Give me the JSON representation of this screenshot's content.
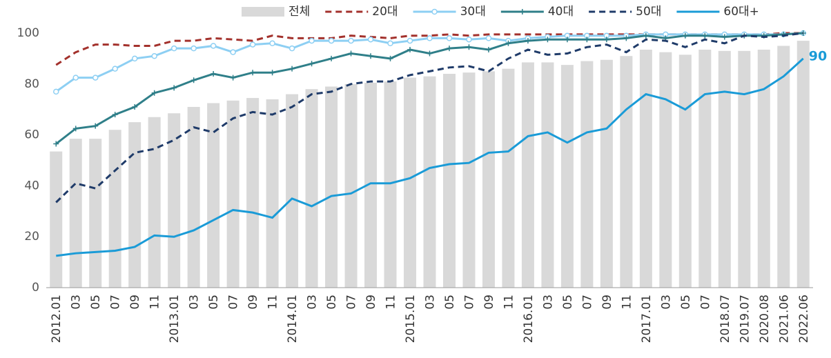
{
  "chart_data": {
    "type": "combo",
    "categories": [
      "2012.01",
      "03",
      "05",
      "07",
      "09",
      "11",
      "2013.01",
      "03",
      "05",
      "07",
      "09",
      "11",
      "2014.01",
      "03",
      "05",
      "07",
      "09",
      "11",
      "2015.01",
      "03",
      "05",
      "07",
      "09",
      "11",
      "2016.01",
      "03",
      "05",
      "07",
      "09",
      "11",
      "2017.01",
      "03",
      "05",
      "07",
      "2018.07",
      "2019.07",
      "2020.08",
      "2021.06",
      "2022.06"
    ],
    "series": [
      {
        "name": "전체",
        "kind": "bar",
        "color": "#d9d9d9",
        "values": [
          53.5,
          58.5,
          58.5,
          62,
          65,
          67,
          68.5,
          71,
          72.5,
          73.5,
          74.5,
          74,
          76,
          78,
          79,
          80,
          80.5,
          81,
          82.5,
          83,
          84,
          84.5,
          85,
          86,
          88.5,
          88.5,
          87.5,
          89,
          89.5,
          91,
          93.5,
          92.5,
          91.5,
          93.5,
          93,
          93,
          93.5,
          95,
          97
        ]
      },
      {
        "name": "20대",
        "kind": "line",
        "dash": true,
        "color": "#a3312c",
        "values": [
          87.5,
          92.5,
          95.5,
          95.5,
          95,
          95,
          97,
          97,
          98,
          97.5,
          97,
          99,
          98,
          98,
          98,
          99,
          98.5,
          98,
          99,
          99,
          99.5,
          99,
          99.5,
          99.5,
          99.5,
          99.5,
          99.5,
          99.5,
          99.5,
          99.5,
          99.5,
          99.5,
          99.5,
          99.5,
          99.5,
          99.5,
          99.5,
          100,
          100
        ]
      },
      {
        "name": "30대",
        "kind": "line",
        "marker": "circle",
        "color": "#8dcff3",
        "values": [
          77,
          82.5,
          82.5,
          86,
          90,
          91,
          94,
          94,
          95,
          92.5,
          95.5,
          96,
          94,
          97,
          97,
          97,
          97.5,
          96,
          97,
          98,
          98,
          97.5,
          98,
          97,
          98,
          98.5,
          99,
          99,
          99,
          99,
          99.5,
          99.5,
          99.5,
          99.5,
          99.5,
          99.5,
          99.5,
          99.5,
          100
        ]
      },
      {
        "name": "40대",
        "kind": "line",
        "marker": "plus",
        "color": "#2f7f89",
        "values": [
          56.5,
          62.5,
          63.5,
          68,
          71,
          76.5,
          78.5,
          81.5,
          84,
          82.5,
          84.5,
          84.5,
          86,
          88,
          90,
          92,
          91,
          90,
          93.5,
          92,
          94,
          94.5,
          93.5,
          96,
          97,
          97.5,
          97.5,
          97.5,
          97.5,
          98,
          99,
          98,
          99,
          99,
          98.5,
          99,
          99,
          99.5,
          100
        ]
      },
      {
        "name": "50대",
        "kind": "line",
        "dash": true,
        "color": "#1f3b69",
        "values": [
          33.5,
          41,
          39,
          46,
          53,
          54.5,
          58,
          63,
          61,
          66.5,
          69,
          68,
          71,
          76,
          77,
          80,
          81,
          81,
          83.5,
          85,
          86.5,
          87,
          85,
          90,
          93.5,
          91.5,
          92,
          94.5,
          95.5,
          92.5,
          97.5,
          97,
          94.5,
          97.5,
          96,
          99,
          98.5,
          99,
          100
        ]
      },
      {
        "name": "60대+",
        "kind": "line",
        "label_last": true,
        "color": "#1a9bd7",
        "values": [
          12.5,
          13.5,
          14,
          14.5,
          16,
          20.5,
          20,
          22.5,
          26.5,
          30.5,
          29.5,
          27.5,
          35,
          32,
          36,
          37,
          41,
          41,
          43,
          47,
          48.5,
          49,
          53,
          53.5,
          59.5,
          61,
          57,
          61,
          62.5,
          70,
          76,
          74,
          70,
          76,
          77,
          76,
          78,
          83,
          90
        ]
      }
    ],
    "ylim": [
      0,
      100
    ],
    "yticks": [
      0,
      20,
      40,
      60,
      80,
      100
    ],
    "grid": false,
    "legend": "top"
  }
}
